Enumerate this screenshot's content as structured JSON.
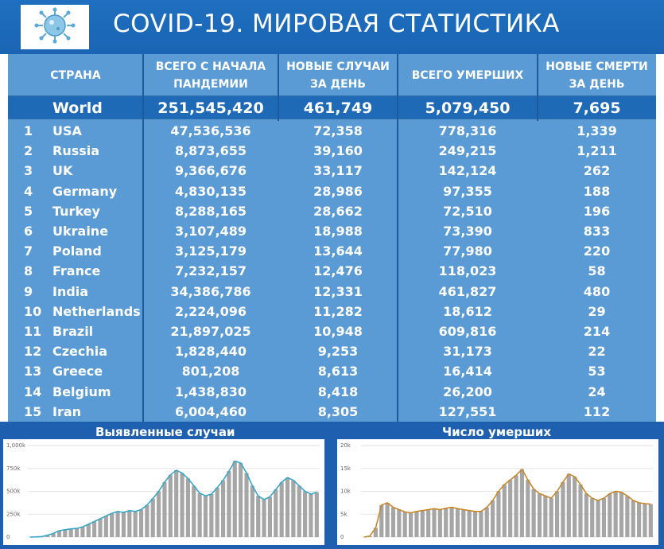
{
  "header": {
    "title": "COVID-19. МИРОВАЯ СТАТИСТИКА",
    "logo_icon": "coronavirus-icon"
  },
  "table": {
    "columns": {
      "country": "СТРАНА",
      "total_line1": "ВСЕГО С НАЧАЛА",
      "total_line2": "ПАНДЕМИИ",
      "new_line1": "НОВЫЕ СЛУЧАИ",
      "new_line2": "ЗА ДЕНЬ",
      "deaths": "ВСЕГО УМЕРШИХ",
      "new_deaths_line1": "НОВЫЕ СМЕРТИ",
      "new_deaths_line2": "ЗА ДЕНЬ"
    },
    "world": {
      "name": "World",
      "total": "251,545,420",
      "new": "461,749",
      "deaths": "5,079,450",
      "new_deaths": "7,695"
    },
    "rows": [
      {
        "rank": "1",
        "country": "USA",
        "total": "47,536,536",
        "new": "72,358",
        "deaths": "778,316",
        "new_deaths": "1,339"
      },
      {
        "rank": "2",
        "country": "Russia",
        "total": "8,873,655",
        "new": "39,160",
        "deaths": "249,215",
        "new_deaths": "1,211"
      },
      {
        "rank": "3",
        "country": "UK",
        "total": "9,366,676",
        "new": "33,117",
        "deaths": "142,124",
        "new_deaths": "262"
      },
      {
        "rank": "4",
        "country": "Germany",
        "total": "4,830,135",
        "new": "28,986",
        "deaths": "97,355",
        "new_deaths": "188"
      },
      {
        "rank": "5",
        "country": "Turkey",
        "total": "8,288,165",
        "new": "28,662",
        "deaths": "72,510",
        "new_deaths": "196"
      },
      {
        "rank": "6",
        "country": "Ukraine",
        "total": "3,107,489",
        "new": "18,988",
        "deaths": "73,390",
        "new_deaths": "833"
      },
      {
        "rank": "7",
        "country": "Poland",
        "total": "3,125,179",
        "new": "13,644",
        "deaths": "77,980",
        "new_deaths": "220"
      },
      {
        "rank": "8",
        "country": "France",
        "total": "7,232,157",
        "new": "12,476",
        "deaths": "118,023",
        "new_deaths": "58"
      },
      {
        "rank": "9",
        "country": "India",
        "total": "34,386,786",
        "new": "12,331",
        "deaths": "461,827",
        "new_deaths": "480"
      },
      {
        "rank": "10",
        "country": "Netherlands",
        "total": "2,224,096",
        "new": "11,282",
        "deaths": "18,612",
        "new_deaths": "29"
      },
      {
        "rank": "11",
        "country": "Brazil",
        "total": "21,897,025",
        "new": "10,948",
        "deaths": "609,816",
        "new_deaths": "214"
      },
      {
        "rank": "12",
        "country": "Czechia",
        "total": "1,828,440",
        "new": "9,253",
        "deaths": "31,173",
        "new_deaths": "22"
      },
      {
        "rank": "13",
        "country": "Greece",
        "total": "801,208",
        "new": "8,613",
        "deaths": "16,414",
        "new_deaths": "53"
      },
      {
        "rank": "14",
        "country": "Belgium",
        "total": "1,438,830",
        "new": "8,418",
        "deaths": "26,200",
        "new_deaths": "24"
      },
      {
        "rank": "15",
        "country": "Iran",
        "total": "6,004,460",
        "new": "8,305",
        "deaths": "127,551",
        "new_deaths": "112"
      }
    ]
  },
  "colors": {
    "header_bg": "#1f6fc0",
    "table_bg": "#5b9bd5",
    "world_bg": "#1e6ab7",
    "bars": "#a6a6a6",
    "cases_line": "#3aa6c8",
    "deaths_line": "#c8872b"
  },
  "chart_data": [
    {
      "type": "bar",
      "title": "Выявленные случаи",
      "yticks": [
        "0",
        "250k",
        "500k",
        "750k",
        "1,000k"
      ],
      "ylim": [
        0,
        1000000
      ],
      "series": [
        {
          "values": [
            0,
            2000,
            5000,
            20000,
            40000,
            70000,
            80000,
            90000,
            95000,
            110000,
            140000,
            170000,
            200000,
            230000,
            260000,
            280000,
            270000,
            290000,
            280000,
            300000,
            350000,
            420000,
            500000,
            600000,
            680000,
            730000,
            700000,
            640000,
            560000,
            480000,
            450000,
            470000,
            540000,
            620000,
            720000,
            830000,
            810000,
            700000,
            560000,
            450000,
            410000,
            440000,
            520000,
            600000,
            650000,
            620000,
            560000,
            500000,
            470000,
            490000
          ]
        }
      ]
    },
    {
      "type": "bar",
      "title": "Число умерших",
      "yticks": [
        "0",
        "5k",
        "10k",
        "15k",
        "20k"
      ],
      "ylim": [
        0,
        20000
      ],
      "series": [
        {
          "values": [
            0,
            200,
            2000,
            7000,
            7500,
            6500,
            6000,
            5500,
            5300,
            5600,
            5800,
            6000,
            6200,
            6000,
            6300,
            6500,
            6200,
            6000,
            5800,
            5600,
            5600,
            6500,
            8000,
            10000,
            11500,
            12500,
            13500,
            14800,
            12500,
            10500,
            9500,
            9000,
            8500,
            10000,
            12000,
            13800,
            13200,
            11500,
            9500,
            8500,
            8000,
            8500,
            9500,
            10000,
            9800,
            9000,
            8000,
            7500,
            7300,
            7200
          ]
        }
      ]
    }
  ]
}
